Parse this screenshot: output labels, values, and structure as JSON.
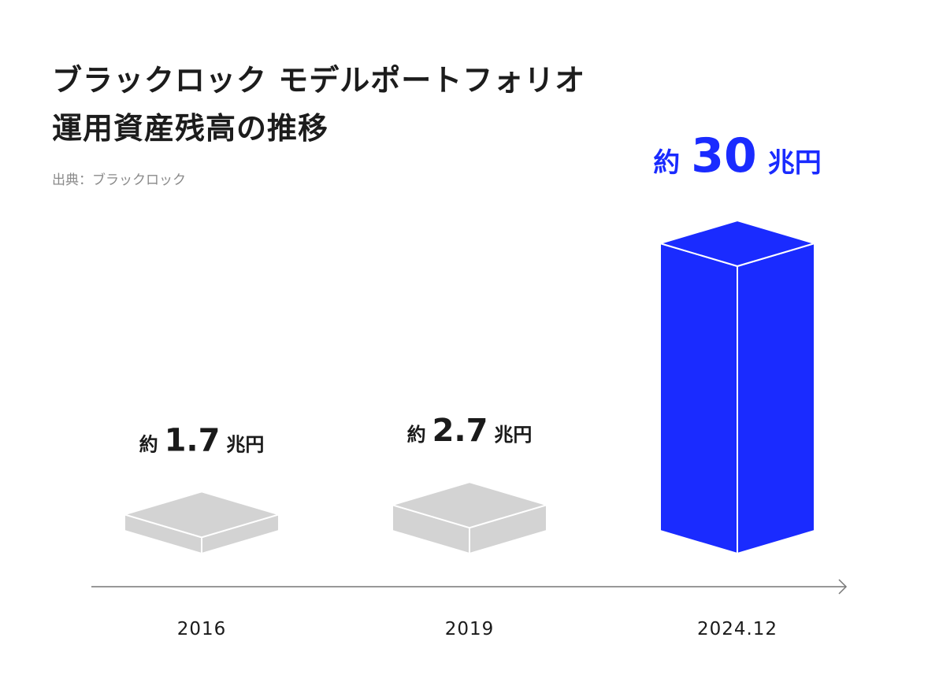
{
  "title": {
    "line1": "ブラックロック モデルポートフォリオ",
    "line2": "運用資産残高の推移"
  },
  "source": "出典：ブラックロック",
  "colors": {
    "highlight": "#1a2bff",
    "muted": "#d3d3d3",
    "text": "#1a1a1a",
    "axis": "#777777"
  },
  "chart_data": {
    "type": "bar",
    "title": "ブラックロック モデルポートフォリオ 運用資産残高の推移",
    "xlabel": "",
    "ylabel": "",
    "unit": "兆円",
    "categories": [
      "2016",
      "2019",
      "2024.12"
    ],
    "values": [
      1.7,
      2.7,
      30
    ],
    "labels": [
      {
        "prefix": "約",
        "number": "1.7",
        "unit": "兆円"
      },
      {
        "prefix": "約",
        "number": "2.7",
        "unit": "兆円"
      },
      {
        "prefix": "約",
        "number": "30",
        "unit": "兆円"
      }
    ],
    "highlight_index": 2
  }
}
